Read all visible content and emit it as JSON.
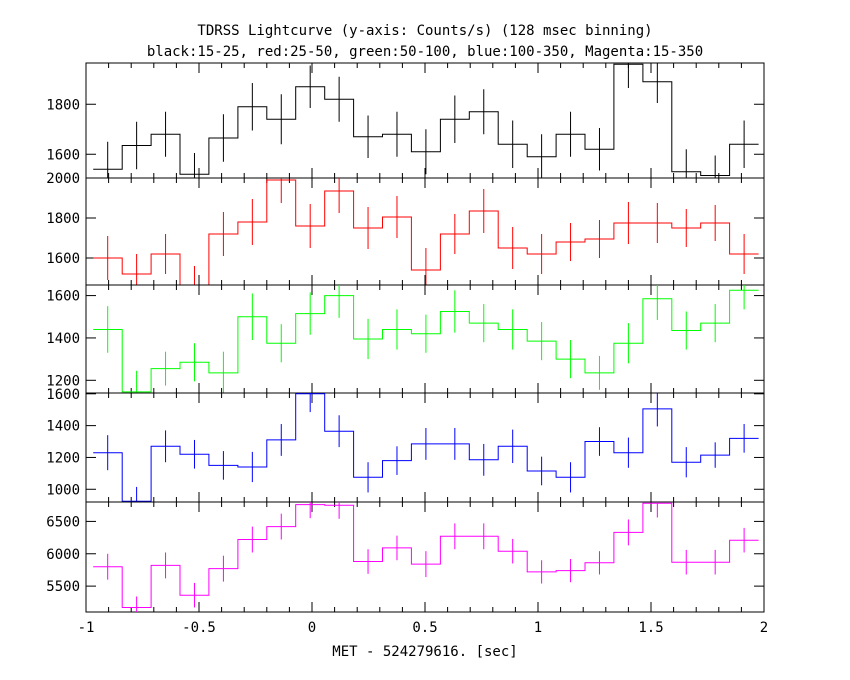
{
  "chart_data": {
    "type": "line",
    "title": "TDRSS Lightcurve (y-axis: Counts/s) (128 msec binning)",
    "subtitle": "black:15-25, red:25-50, green:50-100, blue:100-350, Magenta:15-350",
    "xlabel": "MET - 524279616. [sec]",
    "xlim": [
      -1,
      2
    ],
    "x_ticks": [
      "-1",
      "-0.5",
      "0",
      "0.5",
      "1",
      "1.5",
      "2"
    ],
    "bin_width": 0.128,
    "x": [
      -0.904,
      -0.776,
      -0.648,
      -0.52,
      -0.392,
      -0.264,
      -0.136,
      -0.008,
      0.12,
      0.248,
      0.376,
      0.504,
      0.632,
      0.76,
      0.888,
      1.016,
      1.144,
      1.272,
      1.4,
      1.528,
      1.656,
      1.784,
      1.912
    ],
    "series": [
      {
        "color": "#000000",
        "ylim": [
          1505,
          1965
        ],
        "y_ticks": [
          "1600",
          "1800"
        ],
        "values": [
          1540,
          1635,
          1680,
          1520,
          1665,
          1790,
          1740,
          1870,
          1820,
          1670,
          1680,
          1610,
          1740,
          1770,
          1640,
          1590,
          1680,
          1620,
          1960,
          1890,
          1530,
          1515,
          1640
        ],
        "errors": [
          110,
          95,
          90,
          85,
          95,
          95,
          100,
          85,
          90,
          85,
          90,
          90,
          95,
          90,
          95,
          90,
          90,
          85,
          95,
          85,
          90,
          80,
          95
        ]
      },
      {
        "color": "#ff0000",
        "ylim": [
          1465,
          2000
        ],
        "y_ticks": [
          "1600",
          "1800",
          "2000"
        ],
        "values": [
          1600,
          1520,
          1620,
          1465,
          1720,
          1780,
          1990,
          1760,
          1935,
          1750,
          1805,
          1540,
          1720,
          1835,
          1650,
          1620,
          1680,
          1695,
          1775,
          1775,
          1750,
          1775,
          1620
        ],
        "errors": [
          110,
          100,
          100,
          95,
          110,
          115,
          115,
          110,
          110,
          105,
          105,
          110,
          100,
          110,
          105,
          100,
          95,
          95,
          105,
          100,
          95,
          90,
          100
        ]
      },
      {
        "color": "#00ff00",
        "ylim": [
          1140,
          1650
        ],
        "y_ticks": [
          "1200",
          "1400",
          "1600"
        ],
        "values": [
          1440,
          1145,
          1255,
          1285,
          1235,
          1500,
          1375,
          1515,
          1600,
          1395,
          1440,
          1420,
          1525,
          1470,
          1440,
          1385,
          1300,
          1235,
          1375,
          1585,
          1435,
          1470,
          1625
        ],
        "errors": [
          110,
          100,
          80,
          90,
          100,
          110,
          90,
          100,
          105,
          95,
          95,
          90,
          100,
          90,
          95,
          90,
          90,
          80,
          95,
          100,
          90,
          90,
          90
        ]
      },
      {
        "color": "#0000ff",
        "ylim": [
          920,
          1605
        ],
        "y_ticks": [
          "1000",
          "1200",
          "1400",
          "1600"
        ],
        "values": [
          1230,
          925,
          1270,
          1220,
          1150,
          1140,
          1310,
          1600,
          1365,
          1075,
          1180,
          1285,
          1285,
          1185,
          1270,
          1115,
          1075,
          1300,
          1230,
          1505,
          1170,
          1215,
          1320
        ],
        "errors": [
          110,
          90,
          100,
          90,
          90,
          95,
          100,
          115,
          100,
          95,
          90,
          100,
          100,
          100,
          105,
          90,
          95,
          90,
          95,
          110,
          95,
          80,
          90
        ]
      },
      {
        "color": "#ff00ff",
        "ylim": [
          5100,
          6800
        ],
        "y_ticks": [
          "5500",
          "6000",
          "6500"
        ],
        "values": [
          5800,
          5170,
          5820,
          5360,
          5770,
          6220,
          6420,
          6760,
          6750,
          5880,
          6090,
          5840,
          6270,
          6270,
          6040,
          5720,
          5740,
          5860,
          6330,
          6780,
          5870,
          5870,
          6210
        ],
        "errors": [
          200,
          170,
          200,
          190,
          200,
          200,
          200,
          210,
          210,
          190,
          190,
          200,
          200,
          200,
          190,
          180,
          180,
          180,
          200,
          220,
          190,
          190,
          190
        ]
      }
    ]
  }
}
